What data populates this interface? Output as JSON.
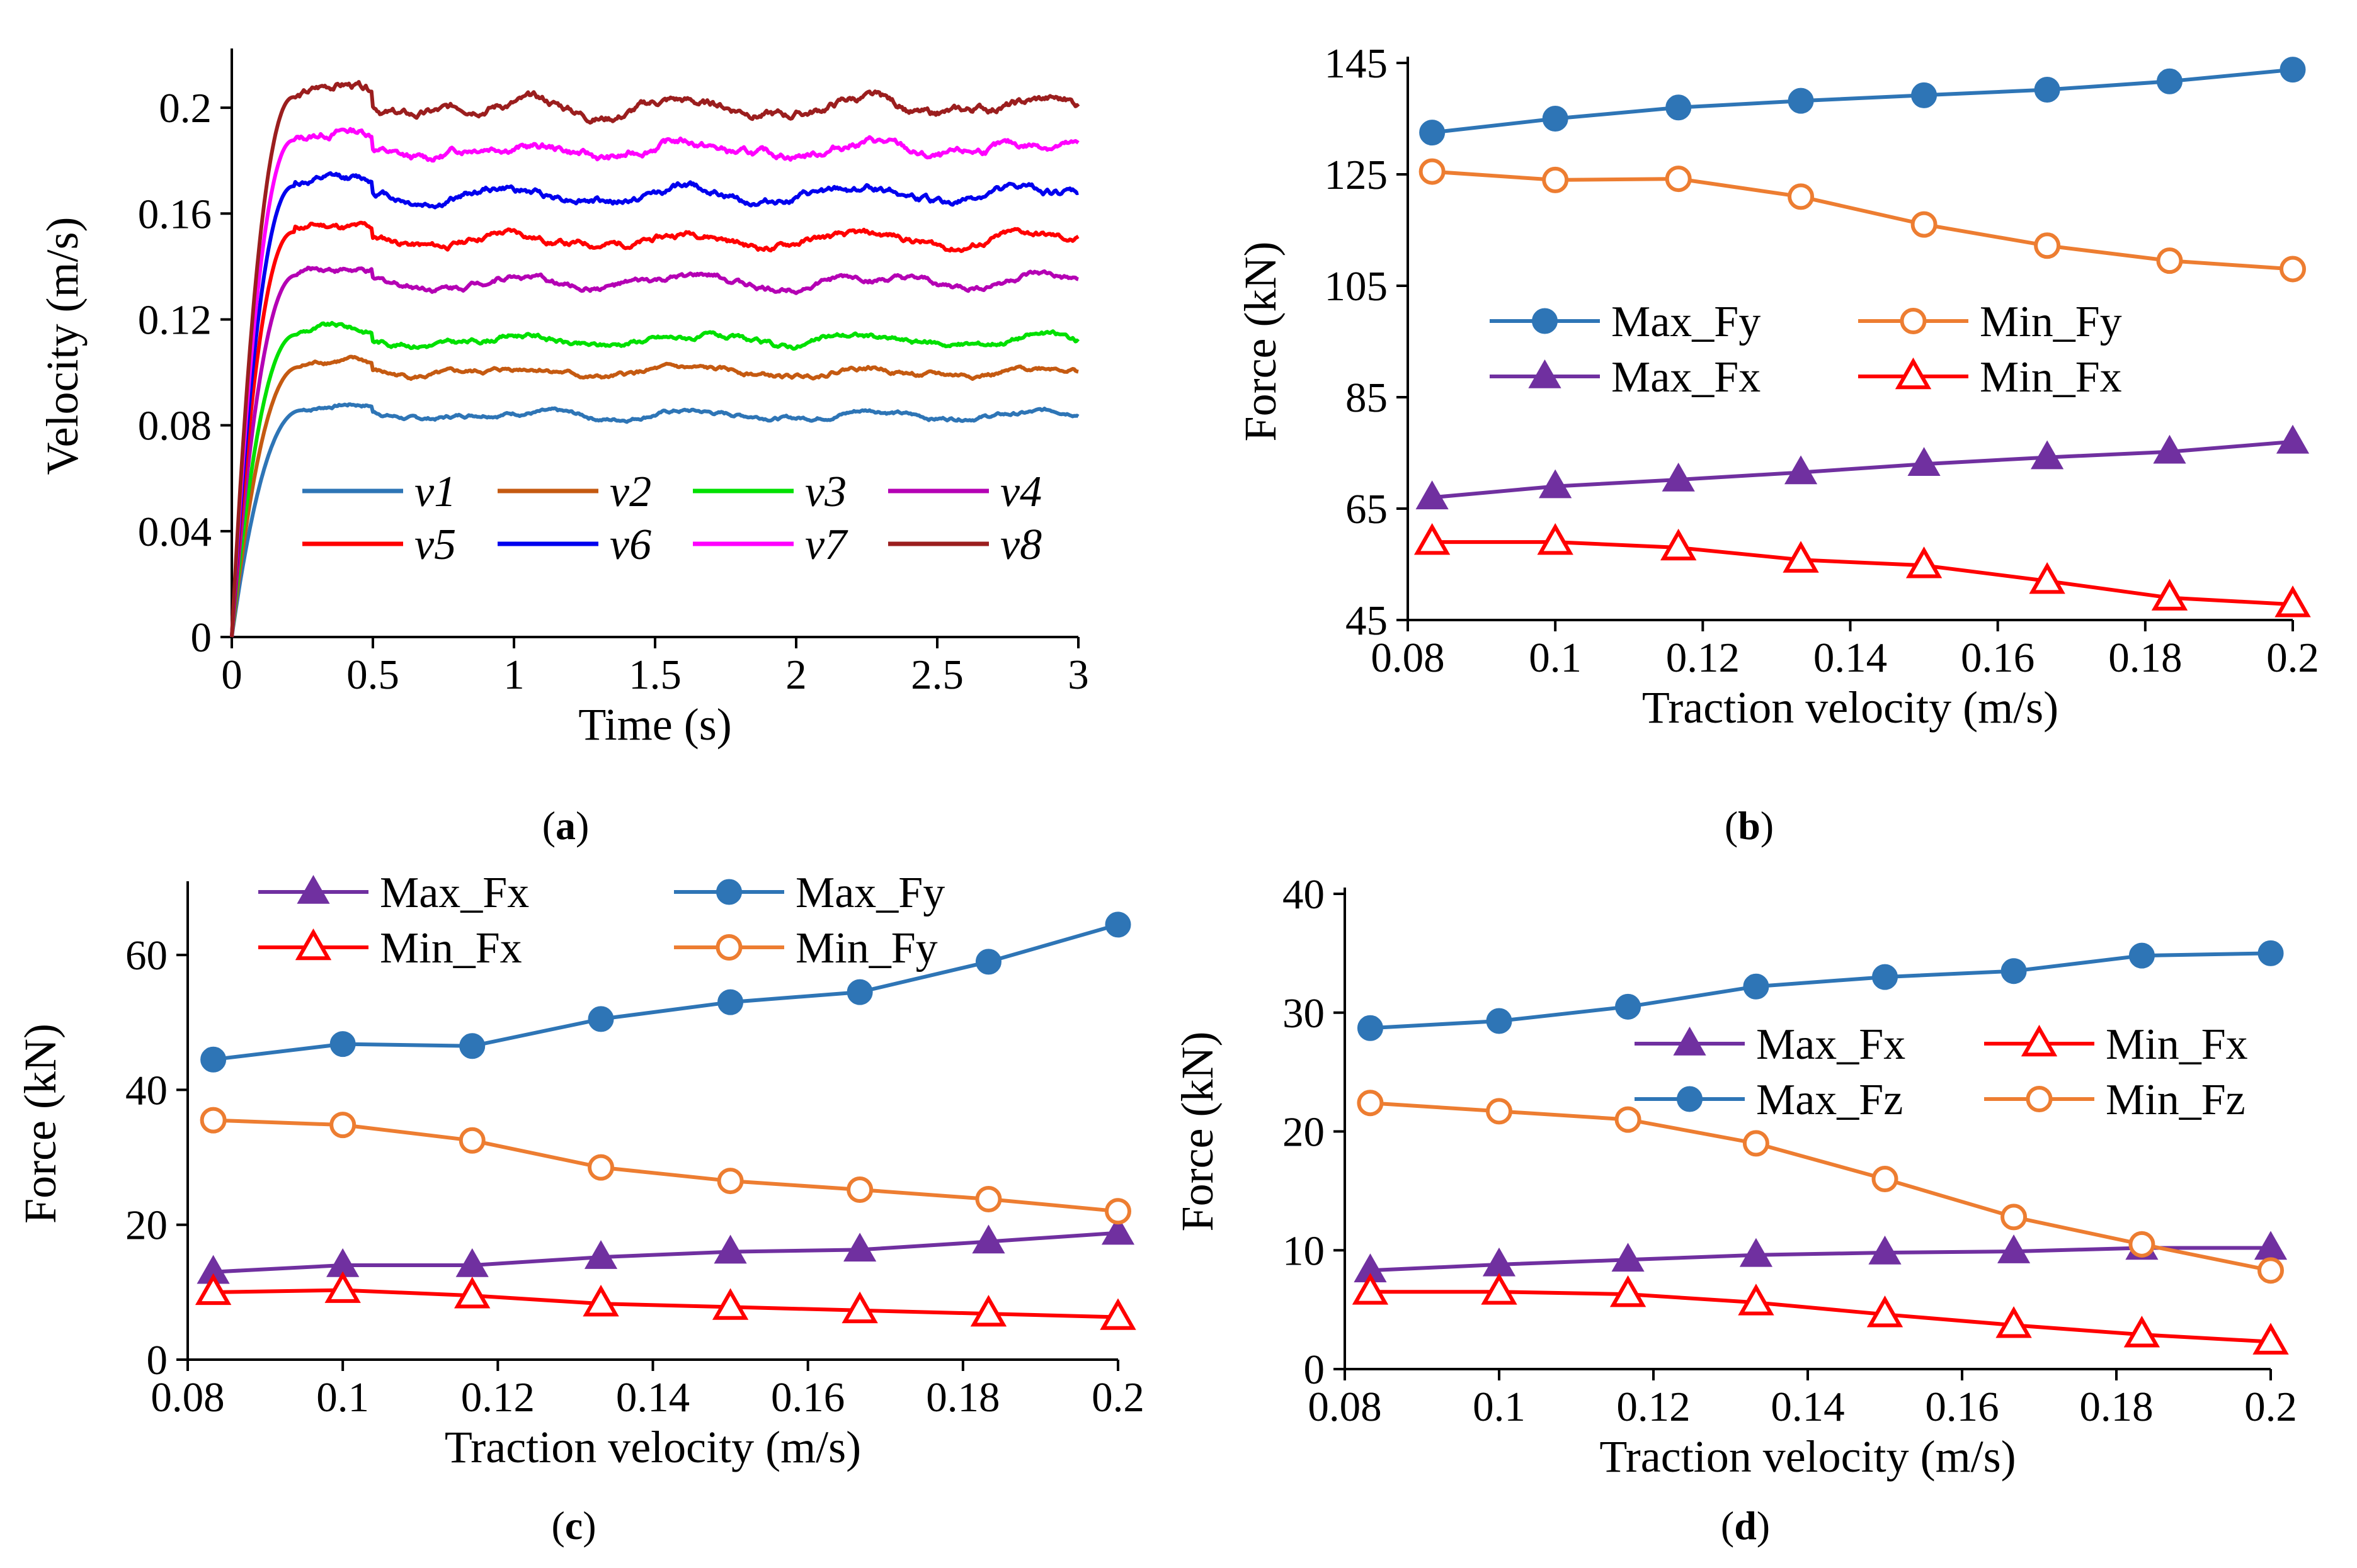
{
  "chart_data": [
    {
      "panel": "a",
      "caption_letter": "a",
      "type": "line",
      "xlabel": "Time (s)",
      "ylabel": "Velocity (m/s)",
      "xlim": [
        0,
        3
      ],
      "ylim": [
        0,
        0.22
      ],
      "xticks": [
        0,
        0.5,
        1,
        1.5,
        2,
        2.5,
        3
      ],
      "xtick_labels": [
        "0",
        "0.5",
        "1",
        "1.5",
        "2",
        "2.5",
        "3"
      ],
      "yticks": [
        0,
        0.04,
        0.08,
        0.12,
        0.16,
        0.2
      ],
      "ytick_labels": [
        "0",
        "0.04",
        "0.08",
        "0.12",
        "0.16",
        "0.2"
      ],
      "legend": "bottom",
      "series": [
        {
          "name": "v1",
          "color": "#2e75b6",
          "steady": 0.084,
          "t_rise": 0.25
        },
        {
          "name": "v2",
          "color": "#c55a11",
          "steady": 0.1,
          "t_rise": 0.24
        },
        {
          "name": "v3",
          "color": "#00e000",
          "steady": 0.112,
          "t_rise": 0.23
        },
        {
          "name": "v4",
          "color": "#b400b4",
          "steady": 0.134,
          "t_rise": 0.23
        },
        {
          "name": "v5",
          "color": "#ff0000",
          "steady": 0.15,
          "t_rise": 0.22
        },
        {
          "name": "v6",
          "color": "#0000ee",
          "steady": 0.167,
          "t_rise": 0.22
        },
        {
          "name": "v7",
          "color": "#ff00ff",
          "steady": 0.184,
          "t_rise": 0.22
        },
        {
          "name": "v8",
          "color": "#9b1e1e",
          "steady": 0.2,
          "t_rise": 0.22
        }
      ]
    },
    {
      "panel": "b",
      "caption_letter": "b",
      "type": "line",
      "xlabel": "Traction velocity (m/s)",
      "ylabel": "Force (kN)",
      "xlim": [
        0.08,
        0.2
      ],
      "ylim": [
        45,
        145
      ],
      "xticks": [
        0.08,
        0.1,
        0.12,
        0.14,
        0.16,
        0.18,
        0.2
      ],
      "xtick_labels": [
        "0.08",
        "0.1",
        "0.12",
        "0.14",
        "0.16",
        "0.18",
        "0.2"
      ],
      "yticks": [
        45,
        65,
        85,
        105,
        125,
        145
      ],
      "ytick_labels": [
        "45",
        "65",
        "85",
        "105",
        "125",
        "145"
      ],
      "legend": "center",
      "x": [
        0.0833,
        0.1,
        0.1167,
        0.1333,
        0.15,
        0.1667,
        0.1833,
        0.2
      ],
      "series": [
        {
          "name": "Max_Fy",
          "color": "#2e75b6",
          "marker": "circle-filled",
          "values": [
            132.5,
            135.0,
            137.0,
            138.2,
            139.2,
            140.2,
            141.7,
            143.8
          ]
        },
        {
          "name": "Min_Fy",
          "color": "#ed7d31",
          "marker": "circle-open",
          "values": [
            125.5,
            124.0,
            124.2,
            121.0,
            116.0,
            112.2,
            109.5,
            108.0
          ]
        },
        {
          "name": "Max_Fx",
          "color": "#7030a0",
          "marker": "triangle-filled",
          "values": [
            67.0,
            69.0,
            70.2,
            71.5,
            73.0,
            74.2,
            75.2,
            77.0
          ]
        },
        {
          "name": "Min_Fx",
          "color": "#ff0000",
          "marker": "triangle-open",
          "values": [
            59.0,
            59.0,
            58.0,
            55.8,
            54.8,
            52.0,
            49.0,
            47.8
          ]
        }
      ]
    },
    {
      "panel": "c",
      "caption_letter": "c",
      "type": "line",
      "xlabel": "Traction velocity (m/s)",
      "ylabel": "Force (kN)",
      "xlim": [
        0.08,
        0.2
      ],
      "ylim": [
        0,
        70
      ],
      "xticks": [
        0.08,
        0.1,
        0.12,
        0.14,
        0.16,
        0.18,
        0.2
      ],
      "xtick_labels": [
        "0.08",
        "0.1",
        "0.12",
        "0.14",
        "0.16",
        "0.18",
        "0.2"
      ],
      "yticks": [
        0,
        20,
        40,
        60
      ],
      "ytick_labels": [
        "0",
        "20",
        "40",
        "60"
      ],
      "legend": "top",
      "x": [
        0.0833,
        0.1,
        0.1167,
        0.1333,
        0.15,
        0.1667,
        0.1833,
        0.2
      ],
      "series": [
        {
          "name": "Max_Fx",
          "color": "#7030a0",
          "marker": "triangle-filled",
          "values": [
            13.0,
            14.0,
            14.0,
            15.2,
            16.0,
            16.3,
            17.5,
            18.8
          ]
        },
        {
          "name": "Max_Fy",
          "color": "#2e75b6",
          "marker": "circle-filled",
          "values": [
            44.5,
            46.8,
            46.5,
            50.5,
            53.0,
            54.5,
            59.0,
            64.5
          ]
        },
        {
          "name": "Min_Fx",
          "color": "#ff0000",
          "marker": "triangle-open",
          "values": [
            10.0,
            10.3,
            9.5,
            8.3,
            7.8,
            7.3,
            6.8,
            6.3
          ]
        },
        {
          "name": "Min_Fy",
          "color": "#ed7d31",
          "marker": "circle-open",
          "values": [
            35.5,
            34.8,
            32.5,
            28.5,
            26.5,
            25.2,
            23.8,
            22.0
          ]
        }
      ]
    },
    {
      "panel": "d",
      "caption_letter": "d",
      "type": "line",
      "xlabel": "Traction velocity (m/s)",
      "ylabel": "Force (kN)",
      "xlim": [
        0.08,
        0.2
      ],
      "ylim": [
        0,
        40
      ],
      "xticks": [
        0.08,
        0.1,
        0.12,
        0.14,
        0.16,
        0.18,
        0.2
      ],
      "xtick_labels": [
        "0.08",
        "0.1",
        "0.12",
        "0.14",
        "0.16",
        "0.18",
        "0.2"
      ],
      "yticks": [
        0,
        10,
        20,
        30,
        40
      ],
      "ytick_labels": [
        "0",
        "10",
        "20",
        "30",
        "40"
      ],
      "legend": "center-right",
      "x": [
        0.0833,
        0.1,
        0.1167,
        0.1333,
        0.15,
        0.1667,
        0.1833,
        0.2
      ],
      "series": [
        {
          "name": "Max_Fx",
          "color": "#7030a0",
          "marker": "triangle-filled",
          "values": [
            8.3,
            8.8,
            9.2,
            9.6,
            9.8,
            9.9,
            10.2,
            10.2
          ]
        },
        {
          "name": "Min_Fx",
          "color": "#ff0000",
          "marker": "triangle-open",
          "values": [
            6.5,
            6.5,
            6.3,
            5.6,
            4.6,
            3.7,
            2.9,
            2.3
          ]
        },
        {
          "name": "Max_Fz",
          "color": "#2e75b6",
          "marker": "circle-filled",
          "values": [
            28.7,
            29.3,
            30.5,
            32.2,
            33.0,
            33.5,
            34.8,
            35.0
          ]
        },
        {
          "name": "Min_Fz",
          "color": "#ed7d31",
          "marker": "circle-open",
          "values": [
            22.4,
            21.7,
            21.0,
            19.0,
            16.0,
            12.8,
            10.5,
            8.3
          ]
        }
      ]
    }
  ]
}
